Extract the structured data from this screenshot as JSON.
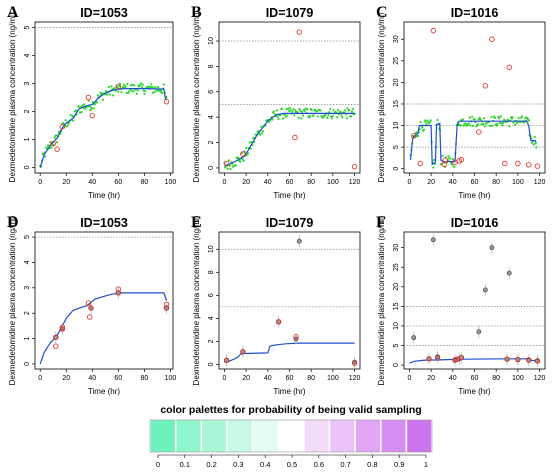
{
  "chart_data": [
    {
      "id": "A",
      "type": "scatter",
      "title": "ID=1053",
      "xlabel": "Time (hr)",
      "ylabel": "Dexmedetomidine plasma concentration (ng/ml)",
      "xlim": [
        -4,
        102
      ],
      "ylim": [
        -0.2,
        5.2
      ],
      "xticks": [
        0,
        20,
        40,
        60,
        80,
        100
      ],
      "yticks": [
        0,
        1,
        2,
        3,
        4,
        5
      ],
      "ylines": [
        5
      ],
      "fit": [
        [
          0,
          0
        ],
        [
          3,
          0.45
        ],
        [
          8,
          0.8
        ],
        [
          13,
          1.05
        ],
        [
          15,
          1.25
        ],
        [
          19,
          1.55
        ],
        [
          25,
          1.75
        ],
        [
          30,
          2.1
        ],
        [
          35,
          2.2
        ],
        [
          40,
          2.25
        ],
        [
          45,
          2.5
        ],
        [
          50,
          2.65
        ],
        [
          55,
          2.75
        ],
        [
          60,
          2.8
        ],
        [
          65,
          2.82
        ],
        [
          80,
          2.82
        ],
        [
          95,
          2.8
        ],
        [
          96,
          2.5
        ],
        [
          97,
          2.4
        ]
      ],
      "green_points": true,
      "observed": [
        [
          10,
          0.85
        ],
        [
          13,
          0.65
        ],
        [
          17,
          1.45
        ],
        [
          37,
          2.5
        ],
        [
          40,
          1.85
        ],
        [
          60,
          2.9
        ],
        [
          97,
          2.35
        ]
      ]
    },
    {
      "id": "B",
      "type": "scatter",
      "title": "ID=1079",
      "xlabel": "Time (hr)",
      "ylabel": "Dexmedetomidine plasma concentration (ng/ml)",
      "xlim": [
        -5,
        125
      ],
      "ylim": [
        -0.4,
        11.5
      ],
      "xticks": [
        0,
        20,
        40,
        60,
        80,
        100,
        120
      ],
      "yticks": [
        0,
        2,
        4,
        6,
        8,
        10
      ],
      "ylines": [
        5,
        10
      ],
      "fit": [
        [
          0,
          0.15
        ],
        [
          5,
          0.3
        ],
        [
          12,
          0.6
        ],
        [
          18,
          0.9
        ],
        [
          22,
          1.4
        ],
        [
          30,
          2.6
        ],
        [
          40,
          3.7
        ],
        [
          48,
          4.2
        ],
        [
          55,
          4.3
        ],
        [
          65,
          4.3
        ],
        [
          80,
          4.3
        ],
        [
          100,
          4.3
        ],
        [
          120,
          4.3
        ]
      ],
      "green_points": true,
      "observed": [
        [
          2,
          0.35
        ],
        [
          17,
          1.1
        ],
        [
          65,
          2.4
        ],
        [
          69,
          10.7
        ],
        [
          120,
          0.1
        ]
      ]
    },
    {
      "id": "C",
      "type": "scatter",
      "title": "ID=1016",
      "xlabel": "Time (hr)",
      "ylabel": "Dexmedetomidine plasma concentration (ng/ml)",
      "xlim": [
        -5,
        125
      ],
      "ylim": [
        -1,
        34
      ],
      "xticks": [
        0,
        20,
        40,
        60,
        80,
        100,
        120
      ],
      "yticks": [
        0,
        5,
        10,
        15,
        20,
        25,
        30
      ],
      "ylines": [
        5,
        10,
        15
      ],
      "fit": [
        [
          1,
          2
        ],
        [
          3,
          7
        ],
        [
          5,
          7.6
        ],
        [
          8,
          8.2
        ],
        [
          9,
          10
        ],
        [
          20,
          10
        ],
        [
          21,
          1
        ],
        [
          24,
          1.5
        ],
        [
          25,
          10.2
        ],
        [
          28,
          10.5
        ],
        [
          29,
          2
        ],
        [
          33,
          1.5
        ],
        [
          36,
          1.7
        ],
        [
          42,
          1.6
        ],
        [
          44,
          10
        ],
        [
          46,
          11
        ],
        [
          70,
          11
        ],
        [
          90,
          11
        ],
        [
          108,
          11
        ],
        [
          110,
          10
        ],
        [
          112,
          6.5
        ],
        [
          116,
          6.5
        ],
        [
          117,
          6
        ]
      ],
      "green_points": true,
      "observed": [
        [
          4,
          7.6
        ],
        [
          10,
          1.2
        ],
        [
          22,
          32
        ],
        [
          32,
          1
        ],
        [
          33,
          2
        ],
        [
          42,
          1.5
        ],
        [
          46,
          1.8
        ],
        [
          48,
          2.1
        ],
        [
          64,
          8.5
        ],
        [
          70,
          19.2
        ],
        [
          76,
          30
        ],
        [
          88,
          1.2
        ],
        [
          92,
          23.5
        ],
        [
          100,
          1.2
        ],
        [
          110,
          0.9
        ],
        [
          118,
          0.6
        ]
      ]
    },
    {
      "id": "D",
      "type": "scatter",
      "title": "ID=1053",
      "xlabel": "Time (hr)",
      "ylabel": "Dexmedetomidine plasma concentration (ng/ml)",
      "xlim": [
        -4,
        102
      ],
      "ylim": [
        -0.2,
        5.2
      ],
      "xticks": [
        0,
        20,
        40,
        60,
        80,
        100
      ],
      "yticks": [
        0,
        1,
        2,
        3,
        4,
        5
      ],
      "ylines": [
        5
      ],
      "fit": [
        [
          0,
          0
        ],
        [
          3,
          0.45
        ],
        [
          8,
          0.85
        ],
        [
          12,
          1.05
        ],
        [
          15,
          1.3
        ],
        [
          20,
          1.8
        ],
        [
          25,
          2.1
        ],
        [
          30,
          2.2
        ],
        [
          36,
          2.3
        ],
        [
          42,
          2.55
        ],
        [
          48,
          2.65
        ],
        [
          55,
          2.75
        ],
        [
          62,
          2.8
        ],
        [
          80,
          2.8
        ],
        [
          95,
          2.8
        ],
        [
          97,
          2.5
        ]
      ],
      "green_points": false,
      "observed": [
        [
          12,
          0.7
        ],
        [
          12,
          1.05
        ],
        [
          17,
          1.45
        ],
        [
          17,
          1.38
        ],
        [
          37,
          2.4
        ],
        [
          38,
          1.85
        ],
        [
          39,
          2.2
        ],
        [
          60,
          2.95
        ],
        [
          60,
          2.8
        ],
        [
          97,
          2.35
        ],
        [
          97,
          2.2
        ]
      ],
      "estimated": [
        [
          12,
          1.05
        ],
        [
          17,
          1.38
        ],
        [
          39,
          2.2
        ],
        [
          60,
          2.8
        ],
        [
          97,
          2.2
        ]
      ]
    },
    {
      "id": "E",
      "type": "scatter",
      "title": "ID=1079",
      "xlabel": "Time (hr)",
      "ylabel": "Dexmedetomidine plasma concentration (ng/ml)",
      "xlim": [
        -5,
        125
      ],
      "ylim": [
        -0.4,
        11.5
      ],
      "xticks": [
        0,
        20,
        40,
        60,
        80,
        100,
        120
      ],
      "yticks": [
        0,
        2,
        4,
        6,
        8,
        10
      ],
      "ylines": [
        5,
        10
      ],
      "fit": [
        [
          0,
          0.2
        ],
        [
          5,
          0.3
        ],
        [
          12,
          0.6
        ],
        [
          15,
          0.9
        ],
        [
          18,
          0.95
        ],
        [
          40,
          1.0
        ],
        [
          42,
          1.6
        ],
        [
          48,
          1.7
        ],
        [
          58,
          1.8
        ],
        [
          70,
          1.85
        ],
        [
          120,
          1.85
        ]
      ],
      "green_points": false,
      "observed": [
        [
          2,
          0.35
        ],
        [
          17,
          1.1
        ],
        [
          50,
          3.7
        ],
        [
          66,
          2.4
        ],
        [
          120,
          0.1
        ]
      ],
      "estimated": [
        [
          2,
          0.35
        ],
        [
          17,
          1.1
        ],
        [
          50,
          3.7
        ],
        [
          66,
          2.2
        ],
        [
          69,
          10.7
        ],
        [
          120,
          0.2
        ]
      ]
    },
    {
      "id": "F",
      "type": "scatter",
      "title": "ID=1016",
      "xlabel": "Time (hr)",
      "ylabel": "Dexmedetomidine plasma concentration (ng/ml)",
      "xlim": [
        -5,
        125
      ],
      "ylim": [
        -1,
        34
      ],
      "xticks": [
        0,
        20,
        40,
        60,
        80,
        100,
        120
      ],
      "yticks": [
        0,
        5,
        10,
        15,
        20,
        25,
        30
      ],
      "ylines": [
        5,
        10,
        15
      ],
      "fit": [
        [
          0,
          0.5
        ],
        [
          5,
          1
        ],
        [
          12,
          1.2
        ],
        [
          18,
          1.3
        ],
        [
          25,
          1.3
        ],
        [
          35,
          1.4
        ],
        [
          42,
          1.45
        ],
        [
          50,
          1.5
        ],
        [
          90,
          1.6
        ],
        [
          108,
          1.6
        ],
        [
          112,
          1.2
        ],
        [
          118,
          1.1
        ]
      ],
      "green_points": false,
      "observed": [
        [
          18,
          1.6
        ],
        [
          26,
          1.8
        ],
        [
          42,
          1.3
        ],
        [
          44,
          1.5
        ],
        [
          48,
          1.9
        ],
        [
          90,
          1.5
        ],
        [
          100,
          1.4
        ],
        [
          110,
          1.3
        ],
        [
          118,
          1.1
        ]
      ],
      "estimated": [
        [
          4,
          7
        ],
        [
          18,
          1.6
        ],
        [
          22,
          32
        ],
        [
          26,
          2.1
        ],
        [
          42,
          1.2
        ],
        [
          46,
          1.6
        ],
        [
          48,
          1.9
        ],
        [
          64,
          8.5
        ],
        [
          70,
          19.2
        ],
        [
          76,
          30
        ],
        [
          90,
          1.5
        ],
        [
          92,
          23.5
        ],
        [
          100,
          1.4
        ],
        [
          110,
          1.2
        ],
        [
          118,
          1
        ]
      ]
    }
  ],
  "legend": {
    "title": "color palettes for probability of being valid sampling",
    "ticks": [
      "0",
      "0.1",
      "0.2",
      "0.3",
      "0.4",
      "0.5",
      "0.6",
      "0.7",
      "0.8",
      "0.9",
      "1"
    ],
    "colors": [
      "#6ff2bd",
      "#8ff5cd",
      "#aaf7d8",
      "#c7f9e5",
      "#e2fcf1",
      "#ffffff",
      "#f3dcfa",
      "#ebc3f8",
      "#e0a6f5",
      "#d68ef2",
      "#cc74ef"
    ]
  },
  "colors": {
    "fit": "#1f4fd1",
    "green": "#2bd62b",
    "observed": "#e8231c",
    "estimated": "#555555",
    "refline": "#888888"
  }
}
